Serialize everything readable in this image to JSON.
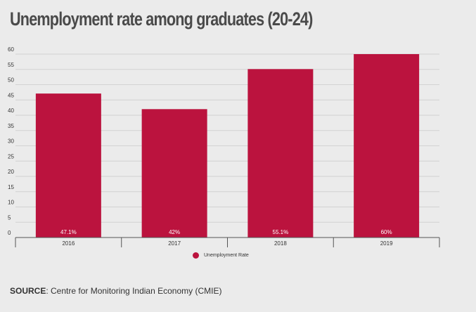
{
  "header": {
    "title": "Unemployment rate among graduates (20-24)"
  },
  "legend": {
    "label": "Unemployment Rate"
  },
  "source": {
    "prefix": "SOURCE",
    "text": ": Centre for Monitoring Indian Economy (CMIE)"
  },
  "colors": {
    "bar": "#bb133e",
    "background": "#ebebeb",
    "grid": "#d2d2d2",
    "axis": "#555555"
  },
  "chart_data": {
    "type": "bar",
    "title": "Unemployment rate among graduates (20-24)",
    "xlabel": "",
    "ylabel": "",
    "categories": [
      "2016",
      "2017",
      "2018",
      "2019"
    ],
    "series": [
      {
        "name": "Unemployment Rate",
        "values": [
          47.1,
          42,
          55.1,
          60
        ],
        "labels": [
          "47.1%",
          "42%",
          "55.1%",
          "60%"
        ]
      }
    ],
    "ylim": [
      0,
      60
    ],
    "yticks": [
      0,
      5,
      10,
      15,
      20,
      25,
      30,
      35,
      40,
      45,
      50,
      55,
      60
    ],
    "grid": true,
    "legend_position": "bottom-center"
  }
}
